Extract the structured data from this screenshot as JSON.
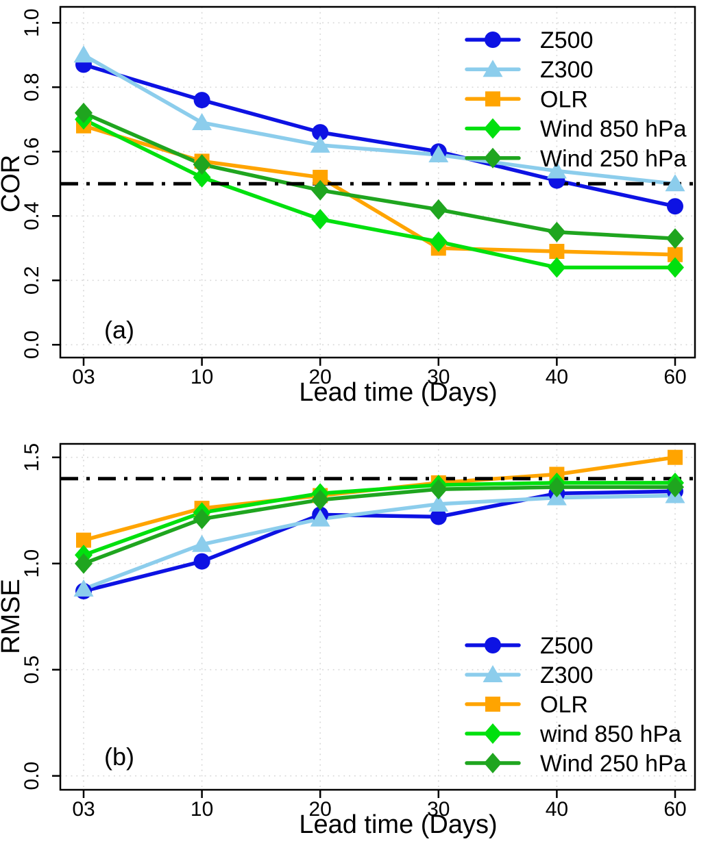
{
  "figure": {
    "background": "#ffffff",
    "text_color": "#000000",
    "grid_color": "#d7d7d7",
    "axis_color": "#000000",
    "reference_line_color": "#000000"
  },
  "chart_data": [
    {
      "id": "a",
      "type": "line",
      "panel_label": "(a)",
      "xlabel": "Lead time (Days)",
      "ylabel": "COR",
      "x_categories": [
        "03",
        "10",
        "20",
        "30",
        "40",
        "60"
      ],
      "yticks": [
        "0.0",
        "0.2",
        "0.4",
        "0.6",
        "0.8",
        "1.0"
      ],
      "ylim": [
        0.0,
        1.0
      ],
      "grid": true,
      "legend_position": "top-right",
      "reference_line_y": 0.5,
      "series": [
        {
          "name": "Z500",
          "color": "#0d12e3",
          "marker": "circle",
          "values": [
            0.87,
            0.76,
            0.66,
            0.6,
            0.51,
            0.43
          ]
        },
        {
          "name": "Z300",
          "color": "#8ccdec",
          "marker": "triangle",
          "values": [
            0.9,
            0.69,
            0.62,
            0.59,
            0.54,
            0.5
          ]
        },
        {
          "name": "OLR",
          "color": "#ffa400",
          "marker": "square",
          "values": [
            0.68,
            0.57,
            0.52,
            0.3,
            0.29,
            0.28
          ]
        },
        {
          "name": "Wind 850 hPa",
          "color": "#00e00e",
          "marker": "diamond",
          "values": [
            0.7,
            0.52,
            0.39,
            0.32,
            0.24,
            0.24
          ]
        },
        {
          "name": "Wind 250 hPa",
          "color": "#1fa51f",
          "marker": "diamond",
          "values": [
            0.72,
            0.56,
            0.48,
            0.42,
            0.35,
            0.33
          ]
        }
      ]
    },
    {
      "id": "b",
      "type": "line",
      "panel_label": "(b)",
      "xlabel": "Lead time (Days)",
      "ylabel": "RMSE",
      "x_categories": [
        "03",
        "10",
        "20",
        "30",
        "40",
        "60"
      ],
      "yticks": [
        "0.0",
        "0.5",
        "1.0",
        "1.5"
      ],
      "ylim": [
        0.0,
        1.5
      ],
      "grid": true,
      "legend_position": "bottom-right",
      "reference_line_y": 1.4,
      "series": [
        {
          "name": "Z500",
          "color": "#0d12e3",
          "marker": "circle",
          "values": [
            0.87,
            1.01,
            1.23,
            1.22,
            1.33,
            1.34
          ]
        },
        {
          "name": "Z300",
          "color": "#8ccdec",
          "marker": "triangle",
          "values": [
            0.88,
            1.09,
            1.21,
            1.28,
            1.31,
            1.32
          ]
        },
        {
          "name": "OLR",
          "color": "#ffa400",
          "marker": "square",
          "values": [
            1.11,
            1.26,
            1.32,
            1.38,
            1.42,
            1.5
          ]
        },
        {
          "name": "wind 850 hPa",
          "color": "#00e00e",
          "marker": "diamond",
          "values": [
            1.04,
            1.24,
            1.33,
            1.37,
            1.38,
            1.38
          ]
        },
        {
          "name": "Wind 250 hPa",
          "color": "#1fa51f",
          "marker": "diamond",
          "values": [
            1.0,
            1.21,
            1.3,
            1.35,
            1.36,
            1.36
          ]
        }
      ]
    }
  ]
}
